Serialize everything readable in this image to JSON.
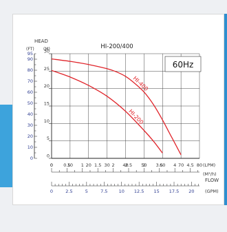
{
  "chart_data": {
    "type": "line",
    "title": "HI-200/400",
    "hz_label": "60Hz",
    "y_axis": {
      "title": "HEAD",
      "units": [
        "(FT)",
        "(M)"
      ]
    },
    "y_m": {
      "range": [
        0,
        30
      ],
      "ticks": [
        "0",
        "5",
        "10",
        "15",
        "20",
        "25",
        "30"
      ]
    },
    "y_ft": {
      "range": [
        0,
        95
      ],
      "ticks": [
        "0",
        "10",
        "20",
        "30",
        "40",
        "50",
        "60",
        "70",
        "80",
        "90",
        "95"
      ]
    },
    "x_axis": {
      "title": "FLOW"
    },
    "x_lpm": {
      "unit": "(LPM)",
      "range": [
        0,
        80
      ],
      "ticks": [
        "0",
        "10",
        "20",
        "30",
        "40",
        "50",
        "60",
        "70",
        "80"
      ]
    },
    "x_m3h": {
      "unit": "(M³/h)",
      "ticks": [
        "0",
        "0.5",
        "1",
        "1.5",
        "2",
        "2.5",
        "3",
        "3.5",
        "4",
        "4.5"
      ]
    },
    "x_gpm": {
      "unit": "(GPM)",
      "ticks": [
        "0",
        "2.5",
        "5",
        "7.5",
        "10",
        "12.5",
        "15",
        "17.5",
        "20"
      ]
    },
    "series": [
      {
        "name": "HI-400",
        "color": "#e0242a",
        "x": [
          0,
          10,
          20,
          30,
          35,
          40,
          45,
          50,
          55,
          60,
          65,
          70
        ],
        "y": [
          28.5,
          27.8,
          26.9,
          25.7,
          24.8,
          23.5,
          21.5,
          19,
          15.5,
          11,
          6,
          1
        ]
      },
      {
        "name": "HI-200",
        "color": "#e0242a",
        "x": [
          0,
          10,
          20,
          30,
          40,
          50,
          55,
          60
        ],
        "y": [
          25.2,
          23.3,
          20.9,
          17.8,
          13.5,
          8,
          5,
          1.5
        ]
      }
    ]
  }
}
